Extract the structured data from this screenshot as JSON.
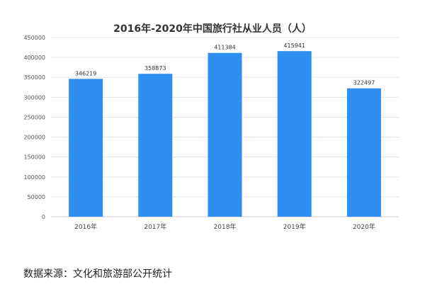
{
  "chart_data": {
    "type": "bar",
    "title": "2016年-2020年中国旅行社从业人员（人）",
    "categories": [
      "2016年",
      "2017年",
      "2018年",
      "2019年",
      "2020年"
    ],
    "values": [
      346219,
      358873,
      411384,
      415941,
      322497
    ],
    "data_labels": [
      "346219",
      "358873",
      "411384",
      "415941",
      "322497"
    ],
    "yticks": [
      "0",
      "50000",
      "100000",
      "150000",
      "200000",
      "250000",
      "300000",
      "350000",
      "400000",
      "450000"
    ],
    "ylim": [
      0,
      450000
    ],
    "xlabel": "",
    "ylabel": "",
    "grid": true,
    "legend": "none",
    "bar_color": "#2e8ff0",
    "grid_color": "#e5e5e5",
    "axis_color": "#cccccc"
  },
  "source_note": "数据来源：文化和旅游部公开统计"
}
